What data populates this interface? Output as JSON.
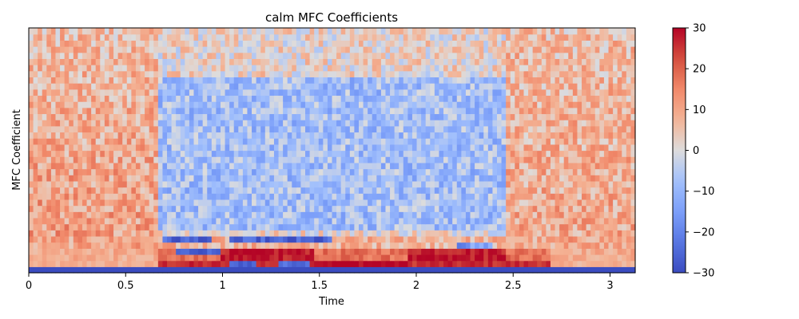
{
  "chart_data": {
    "type": "heatmap",
    "title": "calm MFC Coefficients",
    "xlabel": "Time",
    "ylabel": "MFC Coefficient",
    "xlim": [
      0,
      3.13
    ],
    "x_ticks": [
      0,
      0.5,
      1,
      1.5,
      2,
      2.5,
      3
    ],
    "x_tick_labels": [
      "0",
      "0.5",
      "1",
      "1.5",
      "2",
      "2.5",
      "3"
    ],
    "n_coefficients": 40,
    "n_frames": 136,
    "colormap": "coolwarm",
    "color_range": [
      -30,
      30
    ],
    "colorbar_ticks": [
      30,
      20,
      10,
      0,
      -10,
      -20,
      -30
    ],
    "colorbar_tick_labels": [
      "30",
      "20",
      "10",
      "0",
      "−10",
      "−20",
      "−30"
    ],
    "grid": false,
    "colors": {
      "low": "#3b4cc0",
      "mid": "#dddcdc",
      "high": "#b40426"
    }
  }
}
